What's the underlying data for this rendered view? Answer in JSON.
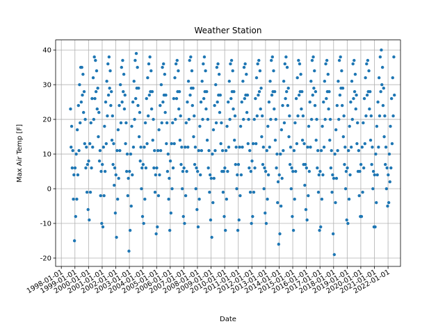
{
  "chart_data": {
    "type": "scatter",
    "title": "Weather Station",
    "x_label": "Date",
    "y_label": "Max Air Temp [F]",
    "color": "#1f77b4",
    "grid": true,
    "xlim": [
      "1997-08-01",
      "2022-12-01"
    ],
    "xticks": [
      "1998-01-01",
      "1999-01-01",
      "2000-01-01",
      "2001-01-01",
      "2002-01-01",
      "2003-01-01",
      "2004-01-01",
      "2005-01-01",
      "2006-01-01",
      "2007-01-01",
      "2008-01-01",
      "2009-01-01",
      "2010-01-01",
      "2011-01-01",
      "2012-01-01",
      "2013-01-01",
      "2014-01-01",
      "2015-01-01",
      "2016-01-01",
      "2017-01-01",
      "2018-01-01",
      "2019-01-01",
      "2020-01-01",
      "2021-01-01",
      "2022-01-01"
    ],
    "ylim": [
      -22.4,
      42.9
    ],
    "yticks": [
      -20,
      -10,
      0,
      10,
      20,
      30,
      40
    ],
    "x": [
      "1998-09-05",
      "1998-09-20",
      "1998-10-05",
      "1998-10-20",
      "1998-11-05",
      "1998-11-20",
      "1998-12-05",
      "1998-12-20",
      "1999-01-05",
      "1999-01-20",
      "1999-02-05",
      "1999-02-20",
      "1999-03-05",
      "1999-03-20",
      "1999-04-05",
      "1999-04-20",
      "1999-05-05",
      "1999-05-20",
      "1999-06-05",
      "1999-06-20",
      "1999-07-05",
      "1999-07-20",
      "1999-08-05",
      "1999-08-20",
      "1999-09-05",
      "1999-09-20",
      "1999-10-05",
      "1999-10-20",
      "1999-11-05",
      "1999-11-20",
      "1999-12-05",
      "1999-12-20",
      "2000-01-05",
      "2000-01-20",
      "2000-02-05",
      "2000-02-20",
      "2000-03-05",
      "2000-03-20",
      "2000-04-05",
      "2000-04-20",
      "2000-05-05",
      "2000-05-20",
      "2000-06-05",
      "2000-06-20",
      "2000-07-05",
      "2000-07-20",
      "2000-08-05",
      "2000-08-20",
      "2000-09-05",
      "2000-09-20",
      "2000-10-05",
      "2000-10-20",
      "2000-11-05",
      "2000-11-20",
      "2000-12-05",
      "2000-12-20",
      "2001-01-05",
      "2001-01-20",
      "2001-02-05",
      "2001-02-20",
      "2001-03-05",
      "2001-03-20",
      "2001-04-05",
      "2001-04-20",
      "2001-05-05",
      "2001-05-20",
      "2001-06-05",
      "2001-06-20",
      "2001-07-05",
      "2001-07-20",
      "2001-08-05",
      "2001-08-20",
      "2001-09-05",
      "2001-09-20",
      "2001-10-05",
      "2001-10-20",
      "2001-11-05",
      "2001-11-20",
      "2001-12-05",
      "2001-12-20",
      "2002-01-05",
      "2002-01-20",
      "2002-02-05",
      "2002-02-20",
      "2002-03-05",
      "2002-03-20",
      "2002-04-05",
      "2002-04-20",
      "2002-05-05",
      "2002-05-20",
      "2002-06-05",
      "2002-06-20",
      "2002-07-05",
      "2002-07-20",
      "2002-08-05",
      "2002-08-20",
      "2002-09-05",
      "2002-09-20",
      "2002-10-05",
      "2002-10-20",
      "2002-11-05",
      "2002-11-20",
      "2002-12-05",
      "2002-12-20",
      "2003-01-05",
      "2003-01-20",
      "2003-02-05",
      "2003-02-20",
      "2003-03-05",
      "2003-03-20",
      "2003-04-05",
      "2003-04-20",
      "2003-05-05",
      "2003-05-20",
      "2003-06-05",
      "2003-06-20",
      "2003-07-05",
      "2003-07-20",
      "2003-08-05",
      "2003-08-20",
      "2003-09-05",
      "2003-09-20",
      "2003-10-05",
      "2003-10-20",
      "2003-11-05",
      "2003-11-20",
      "2003-12-05",
      "2003-12-20",
      "2004-01-05",
      "2004-01-20",
      "2004-02-05",
      "2004-02-20",
      "2004-03-05",
      "2004-03-20",
      "2004-04-05",
      "2004-04-20",
      "2004-05-05",
      "2004-05-20",
      "2004-06-05",
      "2004-06-20",
      "2004-07-05",
      "2004-07-20",
      "2004-08-05",
      "2004-08-20",
      "2004-09-05",
      "2004-09-20",
      "2004-10-05",
      "2004-10-20",
      "2004-11-05",
      "2004-11-20",
      "2004-12-05",
      "2004-12-20",
      "2005-01-05",
      "2005-01-20",
      "2005-02-05",
      "2005-02-20",
      "2005-03-05",
      "2005-03-20",
      "2005-04-05",
      "2005-04-20",
      "2005-05-05",
      "2005-05-20",
      "2005-06-05",
      "2005-06-20",
      "2005-07-05",
      "2005-07-20",
      "2005-08-05",
      "2005-08-20",
      "2005-09-05",
      "2005-09-20",
      "2005-10-05",
      "2005-10-20",
      "2005-11-05",
      "2005-11-20",
      "2005-12-05",
      "2005-12-20",
      "2006-01-05",
      "2006-01-20",
      "2006-02-05",
      "2006-02-20",
      "2006-03-05",
      "2006-03-20",
      "2006-04-05",
      "2006-04-20",
      "2006-05-05",
      "2006-05-20",
      "2006-06-05",
      "2006-06-20",
      "2006-07-05",
      "2006-07-20",
      "2006-08-05",
      "2006-08-20",
      "2006-09-05",
      "2006-09-20",
      "2006-10-05",
      "2006-10-20",
      "2006-11-05",
      "2006-11-20",
      "2006-12-05",
      "2006-12-20",
      "2007-01-05",
      "2007-01-20",
      "2007-02-05",
      "2007-02-20",
      "2007-03-05",
      "2007-03-20",
      "2007-04-05",
      "2007-04-20",
      "2007-05-05",
      "2007-05-20",
      "2007-06-05",
      "2007-06-20",
      "2007-07-05",
      "2007-07-20",
      "2007-08-05",
      "2007-08-20",
      "2007-09-05",
      "2007-09-20",
      "2007-10-05",
      "2007-10-20",
      "2007-11-05",
      "2007-11-20",
      "2007-12-05",
      "2007-12-20",
      "2008-01-05",
      "2008-01-20",
      "2008-02-05",
      "2008-02-20",
      "2008-03-05",
      "2008-03-20",
      "2008-04-05",
      "2008-04-20",
      "2008-05-05",
      "2008-05-20",
      "2008-06-05",
      "2008-06-20",
      "2008-07-05",
      "2008-07-20",
      "2008-08-05",
      "2008-08-20",
      "2008-09-05",
      "2008-09-20",
      "2008-10-05",
      "2008-10-20",
      "2008-11-05",
      "2008-11-20",
      "2008-12-05",
      "2008-12-20",
      "2009-01-05",
      "2009-01-20",
      "2009-02-05",
      "2009-02-20",
      "2009-03-05",
      "2009-03-20",
      "2009-04-05",
      "2009-04-20",
      "2009-05-05",
      "2009-05-20",
      "2009-06-05",
      "2009-06-20",
      "2009-07-05",
      "2009-07-20",
      "2009-08-05",
      "2009-08-20",
      "2009-09-05",
      "2009-09-20",
      "2009-10-05",
      "2009-10-20",
      "2009-11-05",
      "2009-11-20",
      "2009-12-05",
      "2009-12-20",
      "2010-01-05",
      "2010-01-20",
      "2010-02-05",
      "2010-02-20",
      "2010-03-05",
      "2010-03-20",
      "2010-04-05",
      "2010-04-20",
      "2010-05-05",
      "2010-05-20",
      "2010-06-05",
      "2010-06-20",
      "2010-07-05",
      "2010-07-20",
      "2010-08-05",
      "2010-08-20",
      "2010-09-05",
      "2010-09-20",
      "2010-10-05",
      "2010-10-20",
      "2010-11-05",
      "2010-11-20",
      "2010-12-05",
      "2010-12-20",
      "2011-01-05",
      "2011-01-20",
      "2011-02-05",
      "2011-02-20",
      "2011-03-05",
      "2011-03-20",
      "2011-04-05",
      "2011-04-20",
      "2011-05-05",
      "2011-05-20",
      "2011-06-05",
      "2011-06-20",
      "2011-07-05",
      "2011-07-20",
      "2011-08-05",
      "2011-08-20",
      "2011-09-05",
      "2011-09-20",
      "2011-10-05",
      "2011-10-20",
      "2011-11-05",
      "2011-11-20",
      "2011-12-05",
      "2011-12-20",
      "2012-01-05",
      "2012-01-20",
      "2012-02-05",
      "2012-02-20",
      "2012-03-05",
      "2012-03-20",
      "2012-04-05",
      "2012-04-20",
      "2012-05-05",
      "2012-05-20",
      "2012-06-05",
      "2012-06-20",
      "2012-07-05",
      "2012-07-20",
      "2012-08-05",
      "2012-08-20",
      "2012-09-05",
      "2012-09-20",
      "2012-10-05",
      "2012-10-20",
      "2012-11-05",
      "2012-11-20",
      "2012-12-05",
      "2012-12-20",
      "2013-01-05",
      "2013-01-20",
      "2013-02-05",
      "2013-02-20",
      "2013-03-05",
      "2013-03-20",
      "2013-04-05",
      "2013-04-20",
      "2013-05-05",
      "2013-05-20",
      "2013-06-05",
      "2013-06-20",
      "2013-07-05",
      "2013-07-20",
      "2013-08-05",
      "2013-08-20",
      "2013-09-05",
      "2013-09-20",
      "2013-10-05",
      "2013-10-20",
      "2013-11-05",
      "2013-11-20",
      "2013-12-05",
      "2013-12-20",
      "2014-01-05",
      "2014-01-20",
      "2014-02-05",
      "2014-02-20",
      "2014-03-05",
      "2014-03-20",
      "2014-04-05",
      "2014-04-20",
      "2014-05-05",
      "2014-05-20",
      "2014-06-05",
      "2014-06-20",
      "2014-07-05",
      "2014-07-20",
      "2014-08-05",
      "2014-08-20",
      "2014-09-05",
      "2014-09-20",
      "2014-10-05",
      "2014-10-20",
      "2014-11-05",
      "2014-11-20",
      "2014-12-05",
      "2014-12-20",
      "2015-01-05",
      "2015-01-20",
      "2015-02-05",
      "2015-02-20",
      "2015-03-05",
      "2015-03-20",
      "2015-04-05",
      "2015-04-20",
      "2015-05-05",
      "2015-05-20",
      "2015-06-05",
      "2015-06-20",
      "2015-07-05",
      "2015-07-20",
      "2015-08-05",
      "2015-08-20",
      "2015-09-05",
      "2015-09-20",
      "2015-10-05",
      "2015-10-20",
      "2015-11-05",
      "2015-11-20",
      "2015-12-05",
      "2015-12-20",
      "2016-01-05",
      "2016-01-20",
      "2016-02-05",
      "2016-02-20",
      "2016-03-05",
      "2016-03-20",
      "2016-04-05",
      "2016-04-20",
      "2016-05-05",
      "2016-05-20",
      "2016-06-05",
      "2016-06-20",
      "2016-07-05",
      "2016-07-20",
      "2016-08-05",
      "2016-08-20",
      "2016-09-05",
      "2016-09-20",
      "2016-10-05",
      "2016-10-20",
      "2016-11-05",
      "2016-11-20",
      "2016-12-05",
      "2016-12-20",
      "2017-01-05",
      "2017-01-20",
      "2017-02-05",
      "2017-02-20",
      "2017-03-05",
      "2017-03-20",
      "2017-04-05",
      "2017-04-20",
      "2017-05-05",
      "2017-05-20",
      "2017-06-05",
      "2017-06-20",
      "2017-07-05",
      "2017-07-20",
      "2017-08-05",
      "2017-08-20",
      "2017-09-05",
      "2017-09-20",
      "2017-10-05",
      "2017-10-20",
      "2017-11-05",
      "2017-11-20",
      "2017-12-05",
      "2017-12-20",
      "2018-01-05",
      "2018-01-20",
      "2018-02-05",
      "2018-02-20",
      "2018-03-05",
      "2018-03-20",
      "2018-04-05",
      "2018-04-20",
      "2018-05-05",
      "2018-05-20",
      "2018-06-05",
      "2018-06-20",
      "2018-07-05",
      "2018-07-20",
      "2018-08-05",
      "2018-08-20",
      "2018-09-05",
      "2018-09-20",
      "2018-10-05",
      "2018-10-20",
      "2018-11-05",
      "2018-11-20",
      "2018-12-05",
      "2018-12-20",
      "2019-01-05",
      "2019-01-20",
      "2019-02-05",
      "2019-02-20",
      "2019-03-05",
      "2019-03-20",
      "2019-04-05",
      "2019-04-20",
      "2019-05-05",
      "2019-05-20",
      "2019-06-05",
      "2019-06-20",
      "2019-07-05",
      "2019-07-20",
      "2019-08-05",
      "2019-08-20",
      "2019-09-05",
      "2019-09-20",
      "2019-10-05",
      "2019-10-20",
      "2019-11-05",
      "2019-11-20",
      "2019-12-05",
      "2019-12-20",
      "2020-01-05",
      "2020-01-20",
      "2020-02-05",
      "2020-02-20",
      "2020-03-05",
      "2020-03-20",
      "2020-04-05",
      "2020-04-20",
      "2020-05-05",
      "2020-05-20",
      "2020-06-05",
      "2020-06-20",
      "2020-07-05",
      "2020-07-20",
      "2020-08-05",
      "2020-08-20",
      "2020-09-05",
      "2020-09-20",
      "2020-10-05",
      "2020-10-20",
      "2020-11-05",
      "2020-11-20",
      "2020-12-05",
      "2020-12-20",
      "2021-01-05",
      "2021-01-20",
      "2021-02-05",
      "2021-02-20",
      "2021-03-05",
      "2021-03-20",
      "2021-04-05",
      "2021-04-20",
      "2021-05-05",
      "2021-05-20",
      "2021-06-05",
      "2021-06-20",
      "2021-07-05",
      "2021-07-20",
      "2021-08-05",
      "2021-08-20",
      "2021-09-05",
      "2021-09-20",
      "2021-10-05",
      "2021-10-20",
      "2021-11-05",
      "2021-11-20",
      "2021-12-05",
      "2021-12-20",
      "2022-01-05",
      "2022-01-20",
      "2022-02-05",
      "2022-02-20",
      "2022-03-05",
      "2022-03-20",
      "2022-04-05",
      "2022-04-20",
      "2022-05-05",
      "2022-05-20",
      "2022-06-05",
      "2022-06-20"
    ],
    "values": [
      23,
      12,
      18,
      6,
      11,
      -3,
      4,
      -15,
      6,
      -8,
      10,
      -3,
      17,
      4,
      24,
      11,
      30,
      19,
      35,
      25,
      35,
      27,
      33,
      22,
      28,
      13,
      20,
      6,
      12,
      -1,
      7,
      -6,
      8,
      -9,
      13,
      -1,
      19,
      6,
      26,
      12,
      32,
      20,
      38,
      26,
      37,
      28,
      34,
      23,
      29,
      15,
      22,
      8,
      11,
      -2,
      5,
      -10,
      7,
      -11,
      12,
      -2,
      18,
      5,
      25,
      13,
      31,
      21,
      36,
      27,
      38,
      29,
      34,
      24,
      28,
      14,
      21,
      7,
      13,
      1,
      6,
      -7,
      4,
      -14,
      11,
      -3,
      17,
      3,
      24,
      11,
      30,
      19,
      35,
      25,
      37,
      28,
      33,
      23,
      27,
      13,
      19,
      5,
      10,
      -2,
      3,
      -18,
      5,
      -12,
      10,
      -5,
      18,
      4,
      25,
      12,
      31,
      20,
      37,
      26,
      39,
      29,
      35,
      24,
      29,
      15,
      22,
      8,
      12,
      0,
      6,
      -8,
      7,
      -10,
      12,
      -3,
      19,
      6,
      26,
      13,
      32,
      21,
      36,
      27,
      38,
      28,
      34,
      23,
      28,
      14,
      20,
      6,
      11,
      -1,
      4,
      -13,
      6,
      -11,
      11,
      -2,
      17,
      4,
      24,
      11,
      30,
      19,
      35,
      25,
      36,
      27,
      33,
      22,
      27,
      13,
      19,
      5,
      10,
      -3,
      3,
      -12,
      8,
      -7,
      13,
      0,
      19,
      6,
      26,
      13,
      32,
      20,
      36,
      26,
      37,
      28,
      34,
      23,
      28,
      14,
      21,
      7,
      12,
      0,
      5,
      -8,
      6,
      -10,
      12,
      -2,
      19,
      5,
      25,
      12,
      31,
      20,
      37,
      27,
      38,
      29,
      34,
      24,
      29,
      15,
      21,
      7,
      12,
      0,
      6,
      -6,
      5,
      -11,
      11,
      -3,
      18,
      4,
      25,
      11,
      31,
      20,
      36,
      26,
      38,
      28,
      34,
      23,
      28,
      14,
      20,
      6,
      11,
      -1,
      4,
      -9,
      3,
      -14,
      10,
      -4,
      17,
      3,
      24,
      11,
      30,
      19,
      35,
      25,
      36,
      27,
      33,
      22,
      27,
      13,
      19,
      5,
      11,
      -1,
      5,
      -8,
      6,
      -12,
      11,
      -3,
      18,
      5,
      25,
      12,
      31,
      20,
      36,
      26,
      37,
      28,
      34,
      23,
      28,
      14,
      21,
      7,
      12,
      0,
      4,
      -12,
      7,
      -9,
      12,
      -2,
      18,
      4,
      25,
      12,
      31,
      20,
      35,
      26,
      36,
      27,
      33,
      22,
      27,
      13,
      20,
      6,
      11,
      -1,
      5,
      -10,
      8,
      -8,
      13,
      -1,
      20,
      6,
      26,
      13,
      32,
      21,
      36,
      27,
      37,
      28,
      34,
      23,
      29,
      15,
      21,
      7,
      12,
      0,
      6,
      -7,
      5,
      -10,
      11,
      -3,
      18,
      4,
      25,
      12,
      31,
      20,
      37,
      27,
      38,
      28,
      34,
      23,
      28,
      14,
      20,
      6,
      10,
      -4,
      2,
      -16,
      4,
      -13,
      10,
      -5,
      17,
      3,
      24,
      11,
      31,
      19,
      36,
      26,
      38,
      28,
      35,
      24,
      29,
      15,
      21,
      7,
      12,
      0,
      6,
      -8,
      5,
      -12,
      11,
      -3,
      19,
      5,
      26,
      13,
      32,
      21,
      37,
      27,
      36,
      28,
      33,
      23,
      28,
      14,
      21,
      7,
      13,
      1,
      7,
      -6,
      6,
      -9,
      12,
      -2,
      18,
      5,
      25,
      12,
      31,
      20,
      37,
      27,
      38,
      29,
      34,
      24,
      28,
      14,
      20,
      6,
      11,
      -1,
      4,
      -12,
      5,
      -11,
      11,
      -3,
      18,
      4,
      25,
      12,
      31,
      20,
      36,
      26,
      37,
      28,
      33,
      23,
      28,
      14,
      20,
      6,
      11,
      -1,
      4,
      -13,
      3,
      -19,
      10,
      -4,
      17,
      3,
      24,
      11,
      31,
      20,
      37,
      27,
      38,
      29,
      34,
      24,
      29,
      15,
      21,
      7,
      12,
      0,
      5,
      -9,
      6,
      -10,
      11,
      -3,
      18,
      4,
      25,
      12,
      31,
      20,
      36,
      26,
      37,
      28,
      33,
      23,
      27,
      13,
      19,
      5,
      11,
      -2,
      5,
      -8,
      7,
      -8,
      12,
      -1,
      19,
      6,
      26,
      13,
      32,
      21,
      36,
      27,
      37,
      28,
      34,
      23,
      28,
      14,
      21,
      7,
      12,
      0,
      5,
      -11,
      4,
      -11,
      10,
      -4,
      18,
      4,
      25,
      12,
      32,
      21,
      38,
      28,
      40,
      30,
      35,
      24,
      29,
      15,
      21,
      7,
      12,
      0,
      6,
      -5,
      4,
      -4,
      10,
      2,
      18,
      6,
      26,
      13,
      32,
      21,
      38,
      27
    ]
  }
}
